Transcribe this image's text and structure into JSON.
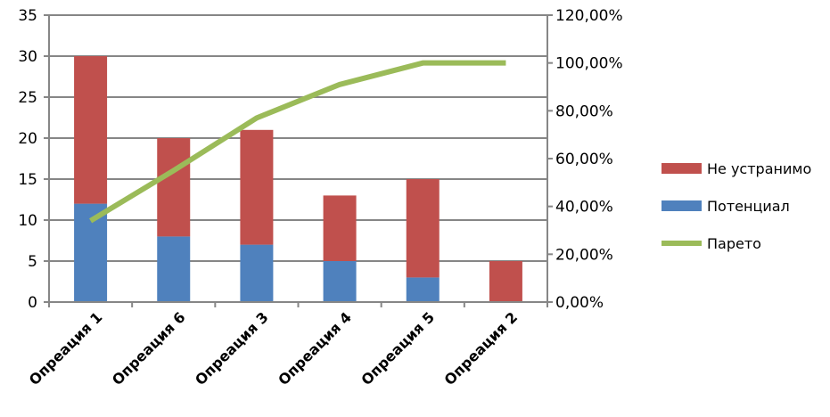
{
  "chart_data": {
    "type": "bar",
    "stacked": true,
    "categories": [
      "Опреация 1",
      "Опреация 6",
      "Опреация 3",
      "Опреация 4",
      "Опреация 5",
      "Опреация 2"
    ],
    "series": [
      {
        "name": "Потенциал",
        "kind": "bar",
        "axis": "left",
        "color": "#4f81bd",
        "values": [
          12,
          8,
          7,
          5,
          3,
          0
        ]
      },
      {
        "name": "Не устранимо",
        "kind": "bar",
        "axis": "left",
        "color": "#c0504d",
        "values": [
          18,
          12,
          14,
          8,
          12,
          5
        ]
      },
      {
        "name": "Парето",
        "kind": "line",
        "axis": "right",
        "color": "#9bbb59",
        "values": [
          0.34,
          0.55,
          0.77,
          0.91,
          1.0,
          1.0
        ]
      }
    ],
    "ylim": [
      0,
      35
    ],
    "y_ticks": [
      0,
      5,
      10,
      15,
      20,
      25,
      30,
      35
    ],
    "y_tick_labels": [
      "0",
      "5",
      "10",
      "15",
      "20",
      "25",
      "30",
      "35"
    ],
    "y2lim": [
      0,
      1.2
    ],
    "y2_ticks": [
      0,
      0.2,
      0.4,
      0.6,
      0.8,
      1.0,
      1.2
    ],
    "y2_tick_labels": [
      "0,00%",
      "20,00%",
      "40,00%",
      "60,00%",
      "80,00%",
      "100,00%",
      "120,00%"
    ],
    "legend": {
      "position": "right",
      "items": [
        {
          "label": "Не устранимо",
          "color": "#c0504d",
          "kind": "bar"
        },
        {
          "label": "Потенциал",
          "color": "#4f81bd",
          "kind": "bar"
        },
        {
          "label": "Парето",
          "color": "#9bbb59",
          "kind": "line"
        }
      ]
    },
    "grid": true,
    "title": "",
    "xlabel": "",
    "ylabel": ""
  }
}
